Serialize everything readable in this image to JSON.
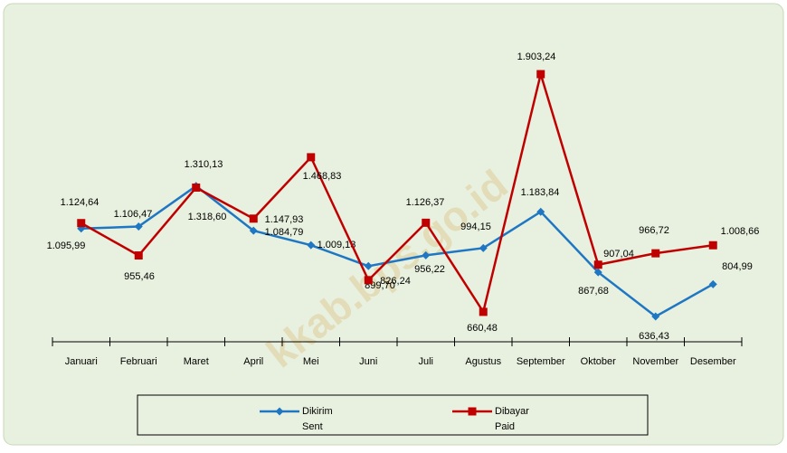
{
  "chart_data": {
    "type": "line",
    "categories": [
      "Januari",
      "Februari",
      "Maret",
      "April",
      "Mei",
      "Juni",
      "Juli",
      "Agustus",
      "September",
      "Oktober",
      "November",
      "Desember"
    ],
    "series": [
      {
        "name": "Dikirim",
        "name_en": "Sent",
        "color": "#1f77c4",
        "marker": "diamond",
        "values": [
          1095.99,
          1106.47,
          1318.6,
          1084.79,
          1009.13,
          899.7,
          956.22,
          994.15,
          1183.84,
          867.68,
          636.43,
          804.99
        ],
        "value_labels": [
          "1.095,99",
          "1.106,47",
          "1.318,60",
          "1.084,79",
          "1.009,13",
          "899,70",
          "956,22",
          "994,15",
          "1.183,84",
          "867,68",
          "636,43",
          "804,99"
        ]
      },
      {
        "name": "Dibayar",
        "name_en": "Paid",
        "color": "#c00000",
        "marker": "square",
        "values": [
          1124.64,
          955.46,
          1310.13,
          1147.93,
          1468.83,
          826.24,
          1126.37,
          660.48,
          1903.24,
          907.04,
          966.72,
          1008.66
        ],
        "value_labels": [
          "1.124,64",
          "955,46",
          "1.310,13",
          "1.147,93",
          "1.468,83",
          "826,24",
          "1.126,37",
          "660,48",
          "1.903,24",
          "907,04",
          "966,72",
          "1.008,66"
        ]
      }
    ],
    "watermark": "kkab.bps.go.id"
  }
}
